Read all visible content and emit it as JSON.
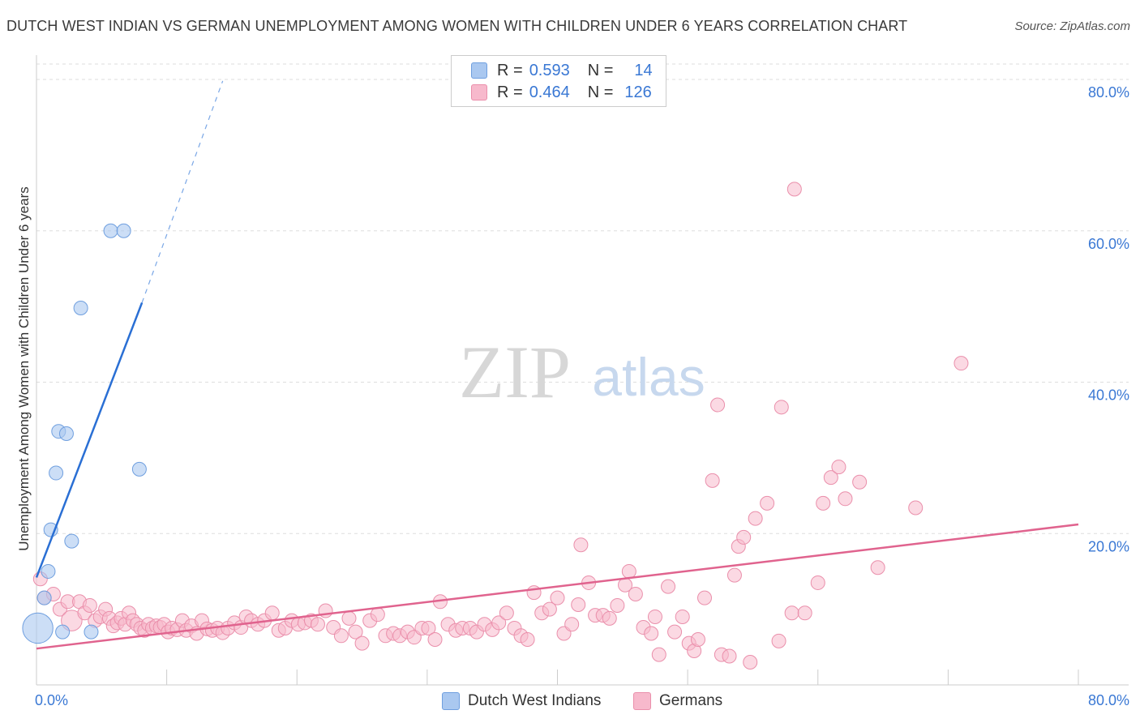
{
  "header": {
    "title": "DUTCH WEST INDIAN VS GERMAN UNEMPLOYMENT AMONG WOMEN WITH CHILDREN UNDER 6 YEARS CORRELATION CHART",
    "source": "Source: ZipAtlas.com"
  },
  "watermark": {
    "zip": "ZIP",
    "atlas": "atlas"
  },
  "legend": {
    "rows": [
      {
        "r_label": "R =",
        "r_value": "0.593",
        "n_label": "N =",
        "n_value": "14"
      },
      {
        "r_label": "R =",
        "r_value": "0.464",
        "n_label": "N =",
        "n_value": "126"
      }
    ]
  },
  "bottom_legend": [
    "Dutch West Indians",
    "Germans"
  ],
  "colors": {
    "dutch_fill": "#aac8f0",
    "dutch_stroke": "#6f9fdf",
    "dutch_line": "#2a6fd4",
    "german_fill": "#f7b9cc",
    "german_stroke": "#ea8fab",
    "german_line": "#e0638e",
    "accent_text": "#3a78d4",
    "grid": "#dddddd"
  },
  "chart_data": {
    "type": "scatter",
    "title": "DUTCH WEST INDIAN VS GERMAN UNEMPLOYMENT AMONG WOMEN WITH CHILDREN UNDER 6 YEARS CORRELATION CHART",
    "xlabel": "",
    "ylabel": "Unemployment Among Women with Children Under 6 years",
    "xlim": [
      0,
      80
    ],
    "ylim": [
      0,
      80
    ],
    "x_tick_labels": [
      {
        "value": 0,
        "label": "0.0%"
      },
      {
        "value": 80,
        "label": "80.0%"
      }
    ],
    "y_tick_labels": [
      {
        "value": 20,
        "label": "20.0%"
      },
      {
        "value": 40,
        "label": "40.0%"
      },
      {
        "value": 60,
        "label": "60.0%"
      },
      {
        "value": 80,
        "label": "80.0%"
      }
    ],
    "grid": true,
    "series": [
      {
        "name": "Dutch West Indians",
        "R": 0.593,
        "N": 14,
        "points": [
          [
            0.1,
            7.5,
            2.2
          ],
          [
            0.6,
            11.5,
            1
          ],
          [
            0.9,
            15,
            1
          ],
          [
            1.1,
            20.5,
            1
          ],
          [
            1.5,
            28,
            1
          ],
          [
            1.7,
            33.5,
            1
          ],
          [
            2.0,
            7,
            1
          ],
          [
            2.3,
            33.2,
            1
          ],
          [
            2.7,
            19,
            1
          ],
          [
            3.4,
            49.8,
            1
          ],
          [
            4.2,
            7,
            1
          ],
          [
            5.7,
            60,
            1
          ],
          [
            6.7,
            60,
            1
          ],
          [
            7.9,
            28.5,
            1
          ]
        ],
        "trend": {
          "x1": 0,
          "y1": 14.2,
          "x2": 8.1,
          "y2": 50.5,
          "dash_to": [
            14.3,
            79.8
          ]
        }
      },
      {
        "name": "Germans",
        "R": 0.464,
        "N": 126,
        "points": [
          [
            0.3,
            14,
            1
          ],
          [
            0.6,
            11.5,
            1
          ],
          [
            1.3,
            12,
            1
          ],
          [
            1.8,
            10,
            1
          ],
          [
            2.4,
            11,
            1
          ],
          [
            2.7,
            8.5,
            1.5
          ],
          [
            3.3,
            11,
            1
          ],
          [
            3.7,
            9.5,
            1
          ],
          [
            4.1,
            10.5,
            1
          ],
          [
            4.5,
            8.5,
            1
          ],
          [
            4.9,
            9,
            1
          ],
          [
            5.3,
            10,
            1
          ],
          [
            5.6,
            8.8,
            1
          ],
          [
            5.9,
            7.8,
            1
          ],
          [
            6.2,
            8.2,
            1
          ],
          [
            6.5,
            8.8,
            1
          ],
          [
            6.8,
            8,
            1
          ],
          [
            7.1,
            9.5,
            1
          ],
          [
            7.4,
            8.5,
            1
          ],
          [
            7.7,
            8,
            1
          ],
          [
            8.0,
            7.5,
            1
          ],
          [
            8.3,
            7.2,
            1
          ],
          [
            8.6,
            8,
            1
          ],
          [
            8.9,
            7.5,
            1
          ],
          [
            9.2,
            7.8,
            1
          ],
          [
            9.5,
            7.6,
            1
          ],
          [
            9.8,
            8,
            1
          ],
          [
            10.1,
            7,
            1
          ],
          [
            10.4,
            7.5,
            1
          ],
          [
            10.8,
            7.3,
            1
          ],
          [
            11.2,
            8.5,
            1
          ],
          [
            11.5,
            7.2,
            1
          ],
          [
            11.9,
            7.8,
            1
          ],
          [
            12.3,
            6.8,
            1
          ],
          [
            12.7,
            8.5,
            1
          ],
          [
            13.1,
            7.4,
            1
          ],
          [
            13.5,
            7.2,
            1
          ],
          [
            13.9,
            7.5,
            1
          ],
          [
            14.3,
            6.9,
            1
          ],
          [
            14.7,
            7.5,
            1
          ],
          [
            15.2,
            8.2,
            1
          ],
          [
            15.7,
            7.6,
            1
          ],
          [
            16.1,
            9,
            1
          ],
          [
            16.5,
            8.5,
            1
          ],
          [
            17.0,
            8,
            1
          ],
          [
            17.5,
            8.5,
            1
          ],
          [
            18.1,
            9.5,
            1
          ],
          [
            18.6,
            7.2,
            1
          ],
          [
            19.1,
            7.5,
            1
          ],
          [
            19.6,
            8.5,
            1
          ],
          [
            20.1,
            8,
            1
          ],
          [
            20.6,
            8.2,
            1
          ],
          [
            21.1,
            8.5,
            1
          ],
          [
            21.6,
            8,
            1
          ],
          [
            22.2,
            9.8,
            1
          ],
          [
            22.8,
            7.6,
            1
          ],
          [
            23.4,
            6.5,
            1
          ],
          [
            24.0,
            8.8,
            1
          ],
          [
            24.5,
            7,
            1
          ],
          [
            25.0,
            5.5,
            1
          ],
          [
            25.6,
            8.5,
            1
          ],
          [
            26.2,
            9.3,
            1
          ],
          [
            26.8,
            6.5,
            1
          ],
          [
            27.4,
            6.8,
            1
          ],
          [
            27.9,
            6.5,
            1
          ],
          [
            28.5,
            7,
            1
          ],
          [
            29.0,
            6.3,
            1
          ],
          [
            29.6,
            7.5,
            1
          ],
          [
            30.1,
            7.5,
            1
          ],
          [
            30.6,
            6,
            1
          ],
          [
            31.0,
            11,
            1
          ],
          [
            31.6,
            8,
            1
          ],
          [
            32.2,
            7.2,
            1
          ],
          [
            32.7,
            7.5,
            1
          ],
          [
            33.3,
            7.5,
            1
          ],
          [
            33.8,
            7,
            1
          ],
          [
            34.4,
            8,
            1
          ],
          [
            35.0,
            7.3,
            1
          ],
          [
            35.5,
            8.2,
            1
          ],
          [
            36.1,
            9.5,
            1
          ],
          [
            36.7,
            7.5,
            1
          ],
          [
            37.2,
            6.5,
            1
          ],
          [
            37.7,
            6,
            1
          ],
          [
            38.2,
            12.2,
            1
          ],
          [
            38.8,
            9.5,
            1
          ],
          [
            39.4,
            10,
            1
          ],
          [
            40.0,
            11.5,
            1
          ],
          [
            40.5,
            6.8,
            1
          ],
          [
            41.1,
            8,
            1
          ],
          [
            41.6,
            10.6,
            1
          ],
          [
            41.8,
            18.5,
            1
          ],
          [
            42.4,
            13.5,
            1
          ],
          [
            42.9,
            9.2,
            1
          ],
          [
            43.5,
            9.2,
            1
          ],
          [
            44.0,
            8.8,
            1
          ],
          [
            44.6,
            10.5,
            1
          ],
          [
            45.2,
            13.2,
            1
          ],
          [
            45.5,
            15,
            1
          ],
          [
            46.0,
            12,
            1
          ],
          [
            46.6,
            7.6,
            1
          ],
          [
            47.2,
            6.8,
            1
          ],
          [
            47.5,
            9,
            1
          ],
          [
            47.8,
            4,
            1
          ],
          [
            48.5,
            13,
            1
          ],
          [
            49.0,
            7,
            1
          ],
          [
            49.6,
            9,
            1
          ],
          [
            50.1,
            5.5,
            1
          ],
          [
            50.5,
            4.5,
            1
          ],
          [
            50.8,
            6,
            1
          ],
          [
            51.3,
            11.5,
            1
          ],
          [
            51.9,
            27,
            1
          ],
          [
            52.3,
            37,
            1
          ],
          [
            52.6,
            4,
            1
          ],
          [
            53.2,
            3.8,
            1
          ],
          [
            53.6,
            14.5,
            1
          ],
          [
            53.9,
            18.3,
            1
          ],
          [
            54.3,
            19.5,
            1
          ],
          [
            54.8,
            3,
            1
          ],
          [
            55.2,
            22,
            1
          ],
          [
            56.1,
            24,
            1
          ],
          [
            57.0,
            5.8,
            1
          ],
          [
            57.2,
            36.7,
            1
          ],
          [
            58.2,
            65.5,
            1
          ],
          [
            58.0,
            9.5,
            1
          ],
          [
            59.0,
            9.5,
            1
          ],
          [
            60.0,
            13.5,
            1
          ],
          [
            60.4,
            24,
            1
          ],
          [
            61.0,
            27.4,
            1
          ],
          [
            61.6,
            28.8,
            1
          ],
          [
            62.1,
            24.6,
            1
          ],
          [
            63.2,
            26.8,
            1
          ],
          [
            64.6,
            15.5,
            1
          ],
          [
            67.5,
            23.4,
            1
          ],
          [
            71.0,
            42.5,
            1
          ]
        ],
        "trend": {
          "x1": 0,
          "y1": 4.8,
          "x2": 80,
          "y2": 21.2
        }
      }
    ]
  }
}
